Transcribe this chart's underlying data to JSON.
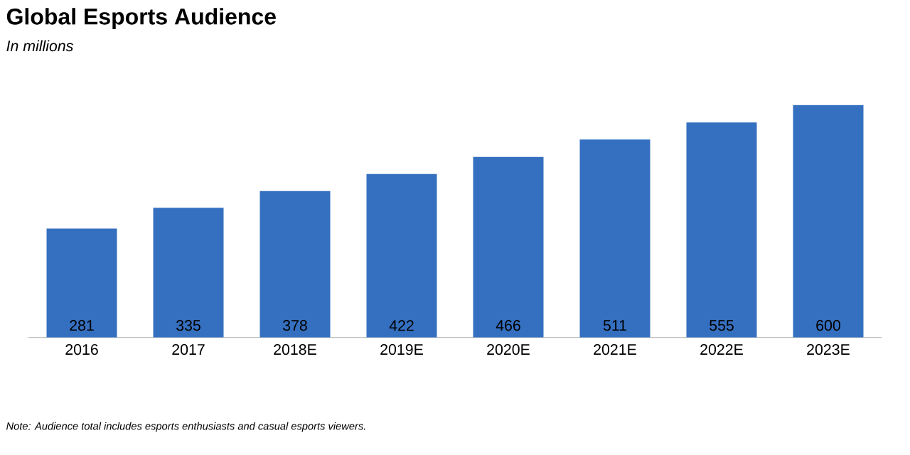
{
  "chart_data": {
    "type": "bar",
    "title": "Global Esports Audience",
    "subtitle": "In millions",
    "categories": [
      "2016",
      "2017",
      "2018E",
      "2019E",
      "2020E",
      "2021E",
      "2022E",
      "2023E"
    ],
    "values": [
      281,
      335,
      378,
      422,
      466,
      511,
      555,
      600
    ],
    "color": "#3570c0",
    "data_labels": true,
    "annotations": [
      "Note: Audience total includes esports enthusiasts and casual esports viewers."
    ]
  }
}
